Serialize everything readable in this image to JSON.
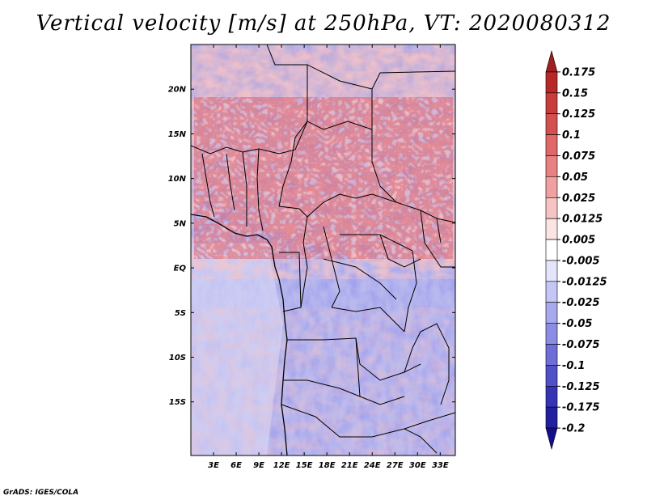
{
  "title": "Vertical velocity [m/s] at 250hPa, VT: 2020080312",
  "footer": "GrADS: IGES/COLA",
  "map": {
    "lon_range": [
      0,
      35
    ],
    "lat_range": [
      -21,
      25
    ],
    "lon_ticks": [
      "3E",
      "6E",
      "9E",
      "12E",
      "15E",
      "18E",
      "21E",
      "24E",
      "27E",
      "30E",
      "33E"
    ],
    "lat_ticks": [
      "20N",
      "15N",
      "10N",
      "5N",
      "EQ",
      "5S",
      "10S",
      "15S"
    ],
    "variable": "vertical velocity",
    "units": "m/s",
    "level": "250hPa"
  },
  "colorbar": {
    "labels": [
      "0.175",
      "0.15",
      "0.125",
      "0.1",
      "0.075",
      "0.05",
      "0.025",
      "0.0125",
      "0.005",
      "-0.005",
      "-0.0125",
      "-0.025",
      "-0.05",
      "-0.075",
      "-0.1",
      "-0.125",
      "-0.175",
      "-0.2"
    ],
    "colors": [
      "#a01e1e",
      "#b82828",
      "#c83c3c",
      "#d45050",
      "#e06868",
      "#e88282",
      "#f0a0a0",
      "#f6c4c4",
      "#fbe4e4",
      "#ffffff",
      "#e4e4fb",
      "#c6c6f4",
      "#a8a8ec",
      "#8c8ce4",
      "#6e6ed8",
      "#5050c8",
      "#3434b4",
      "#2020a0",
      "#140e8c"
    ]
  }
}
